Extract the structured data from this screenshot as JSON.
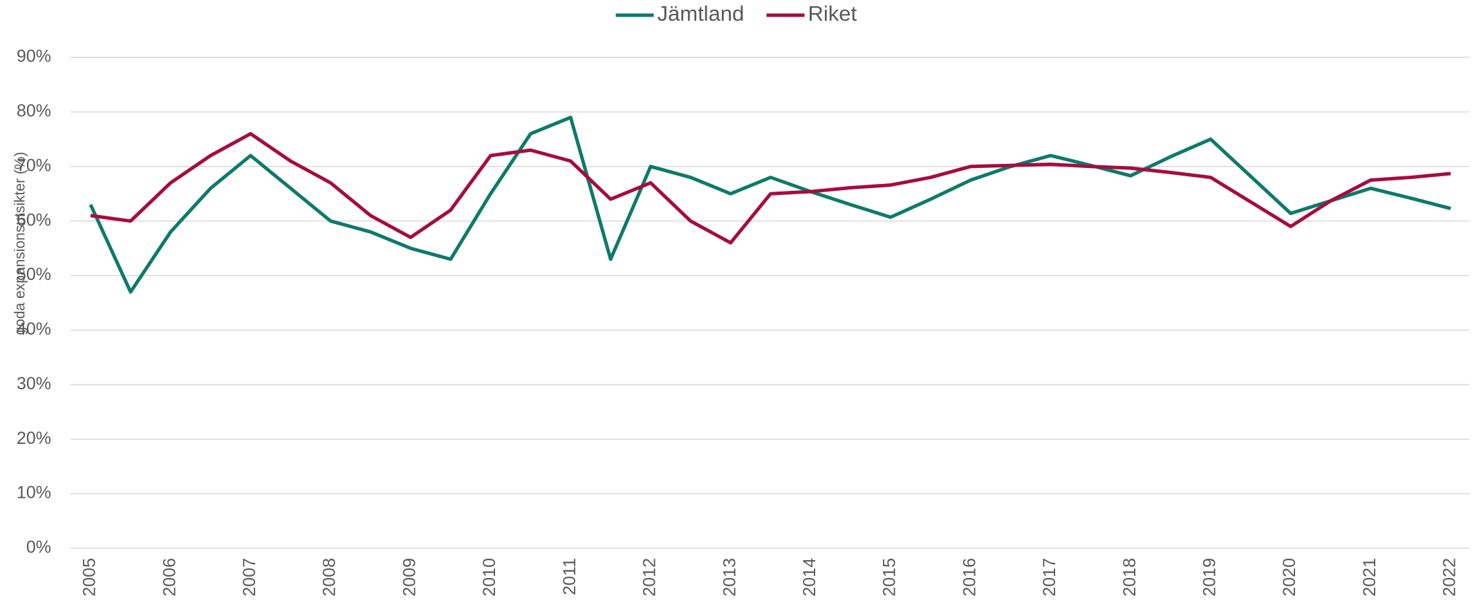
{
  "chart_data": {
    "type": "line",
    "y_label": "goda expansionsutsikter (%)",
    "categories": [
      "2005",
      null,
      "2006",
      null,
      "2007",
      null,
      "2008",
      null,
      "2009",
      null,
      "2010",
      null,
      "2011",
      null,
      "2012",
      null,
      "2013",
      null,
      "2014",
      null,
      "2015",
      null,
      "2016",
      null,
      "2017",
      null,
      "2018",
      null,
      "2019",
      null,
      "2020",
      null,
      "2021",
      null,
      "2022"
    ],
    "series": [
      {
        "name": "Jämtland",
        "color": "#0e7a6a",
        "values": [
          63,
          47,
          58,
          66,
          72,
          66,
          60,
          58,
          55,
          53,
          65,
          76,
          79,
          53,
          70,
          68,
          65,
          68,
          65.4,
          63,
          60.7,
          64,
          67.5,
          70,
          72,
          70.2,
          68.3,
          71.8,
          75,
          68.2,
          61.4,
          63.7,
          66,
          64.2,
          62.3
        ]
      },
      {
        "name": "Riket",
        "color": "#a50d3e",
        "values": [
          61,
          60,
          67,
          72,
          76,
          71,
          67,
          61,
          57,
          62,
          72,
          73,
          71,
          64,
          67,
          60,
          56,
          65,
          65.4,
          66.1,
          66.6,
          68,
          70,
          70.2,
          70.4,
          70,
          69.7,
          68.9,
          68,
          63.5,
          59,
          63.7,
          67.5,
          68,
          68.7
        ]
      }
    ],
    "ylim": [
      0,
      90
    ],
    "yticks": [
      {
        "value": 0,
        "label": "0%"
      },
      {
        "value": 10,
        "label": "10%"
      },
      {
        "value": 20,
        "label": "20%"
      },
      {
        "value": 30,
        "label": "30%"
      },
      {
        "value": 40,
        "label": "40%"
      },
      {
        "value": 50,
        "label": "50%"
      },
      {
        "value": 60,
        "label": "60%"
      },
      {
        "value": 70,
        "label": "70%"
      },
      {
        "value": 80,
        "label": "80%"
      },
      {
        "value": 90,
        "label": "90%"
      }
    ],
    "grid": true,
    "legend": "top"
  }
}
